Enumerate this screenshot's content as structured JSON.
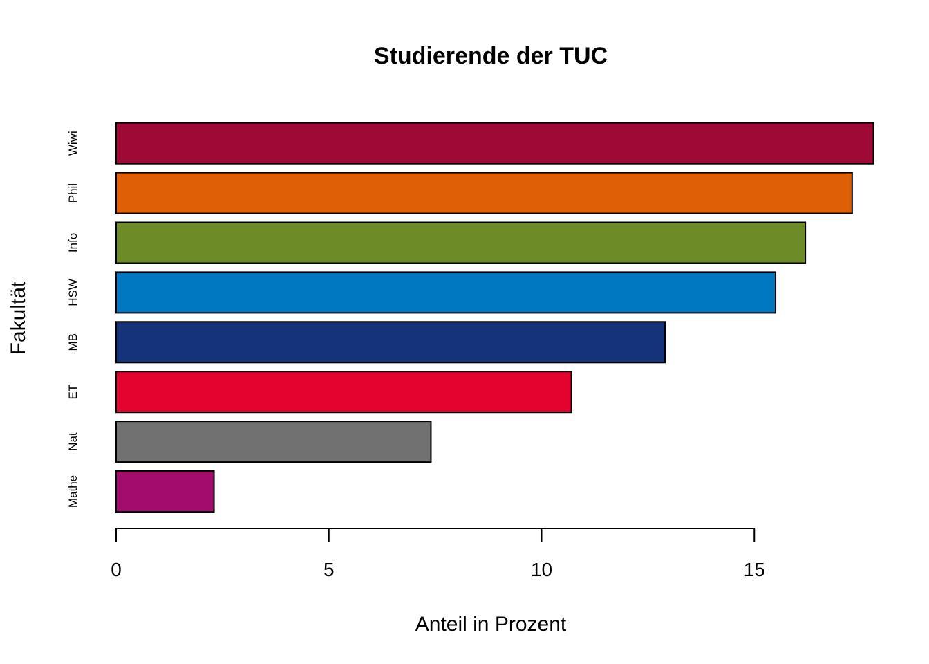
{
  "chart_data": {
    "type": "bar",
    "orientation": "horizontal",
    "title": "Studierende der TUC",
    "xlabel": "Anteil in Prozent",
    "ylabel": "Fakultät",
    "categories": [
      "Mathe",
      "Nat",
      "ET",
      "MB",
      "HSW",
      "Info",
      "Phil",
      "Wiwi"
    ],
    "values": [
      2.3,
      7.4,
      10.7,
      12.9,
      15.5,
      16.2,
      17.3,
      17.8
    ],
    "colors": [
      "#A20C6B",
      "#717171",
      "#E4032E",
      "#153378",
      "#0077C1",
      "#6D8C27",
      "#DF5F06",
      "#9E0A35"
    ],
    "xlim": [
      0,
      17.8
    ],
    "xticks": [
      0,
      5,
      10,
      15
    ],
    "xtick_labels": [
      "0",
      "5",
      "10",
      "15"
    ],
    "grid": false,
    "legend": "none"
  }
}
